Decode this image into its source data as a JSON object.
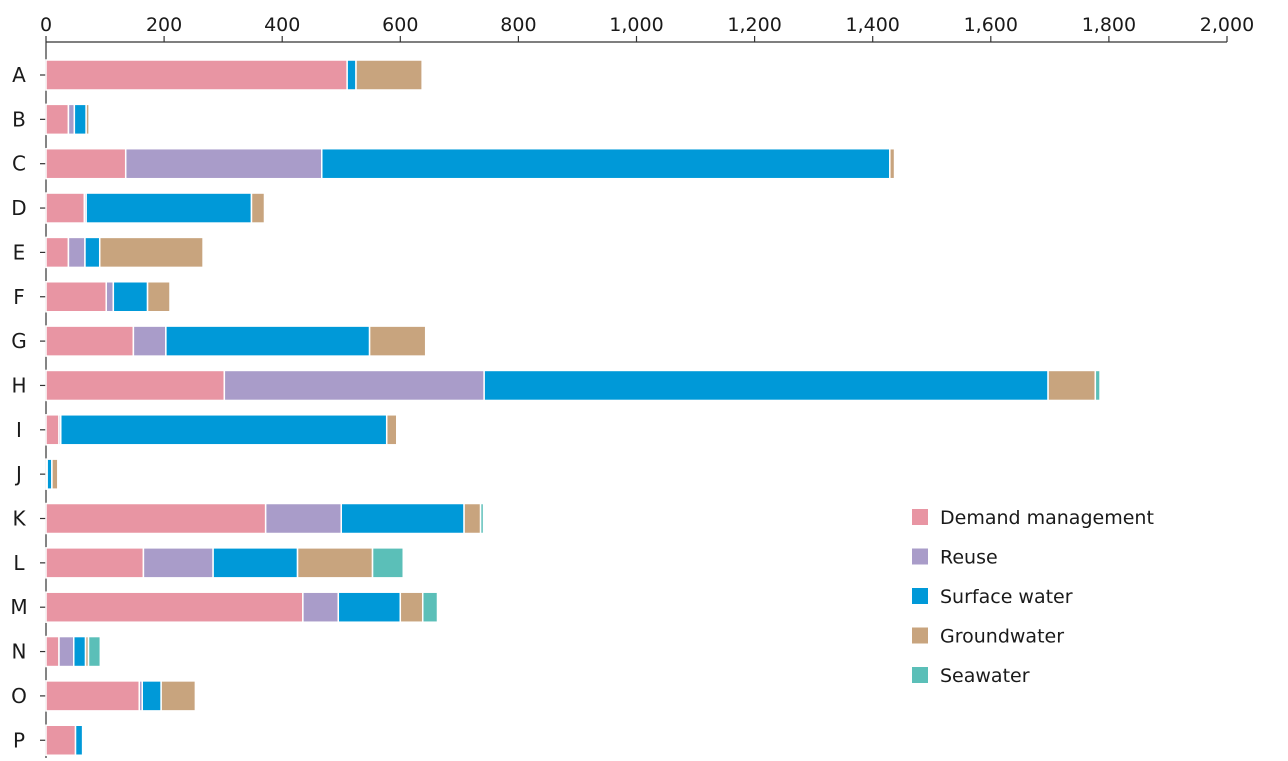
{
  "chart_data": {
    "type": "bar",
    "orientation": "horizontal",
    "stacked": true,
    "title": "",
    "xlabel": "",
    "ylabel": "",
    "xlim": [
      0,
      2000
    ],
    "x_ticks": [
      0,
      200,
      400,
      600,
      800,
      1000,
      1200,
      1400,
      1600,
      1800,
      2000
    ],
    "x_tick_labels": [
      "0",
      "200",
      "400",
      "600",
      "800",
      "1,000",
      "1,200",
      "1,400",
      "1,600",
      "1,800",
      "2,000"
    ],
    "x_axis_position": "top",
    "grid": false,
    "legend_position": "right",
    "categories": [
      "A",
      "B",
      "C",
      "D",
      "E",
      "F",
      "G",
      "H",
      "I",
      "J",
      "K",
      "L",
      "M",
      "N",
      "O",
      "P"
    ],
    "series": [
      {
        "name": "Demand management",
        "color": "#E895A3",
        "values": [
          510,
          38,
          135,
          65,
          38,
          102,
          148,
          302,
          22,
          2,
          372,
          165,
          435,
          22,
          158,
          50
        ]
      },
      {
        "name": "Reuse",
        "color": "#A99CC9",
        "values": [
          0,
          10,
          332,
          3,
          28,
          12,
          55,
          440,
          3,
          0,
          128,
          118,
          60,
          25,
          5,
          0
        ]
      },
      {
        "name": "Surface water",
        "color": "#0099D8",
        "values": [
          15,
          20,
          962,
          280,
          25,
          58,
          345,
          955,
          552,
          8,
          208,
          143,
          105,
          20,
          32,
          12
        ]
      },
      {
        "name": "Groundwater",
        "color": "#C8A47E",
        "values": [
          112,
          5,
          8,
          22,
          175,
          38,
          95,
          80,
          17,
          10,
          28,
          127,
          38,
          5,
          58,
          0
        ]
      },
      {
        "name": "Seawater",
        "color": "#5BBFB8",
        "values": [
          0,
          0,
          0,
          0,
          0,
          0,
          0,
          8,
          0,
          0,
          5,
          52,
          25,
          20,
          0,
          0
        ]
      }
    ]
  }
}
